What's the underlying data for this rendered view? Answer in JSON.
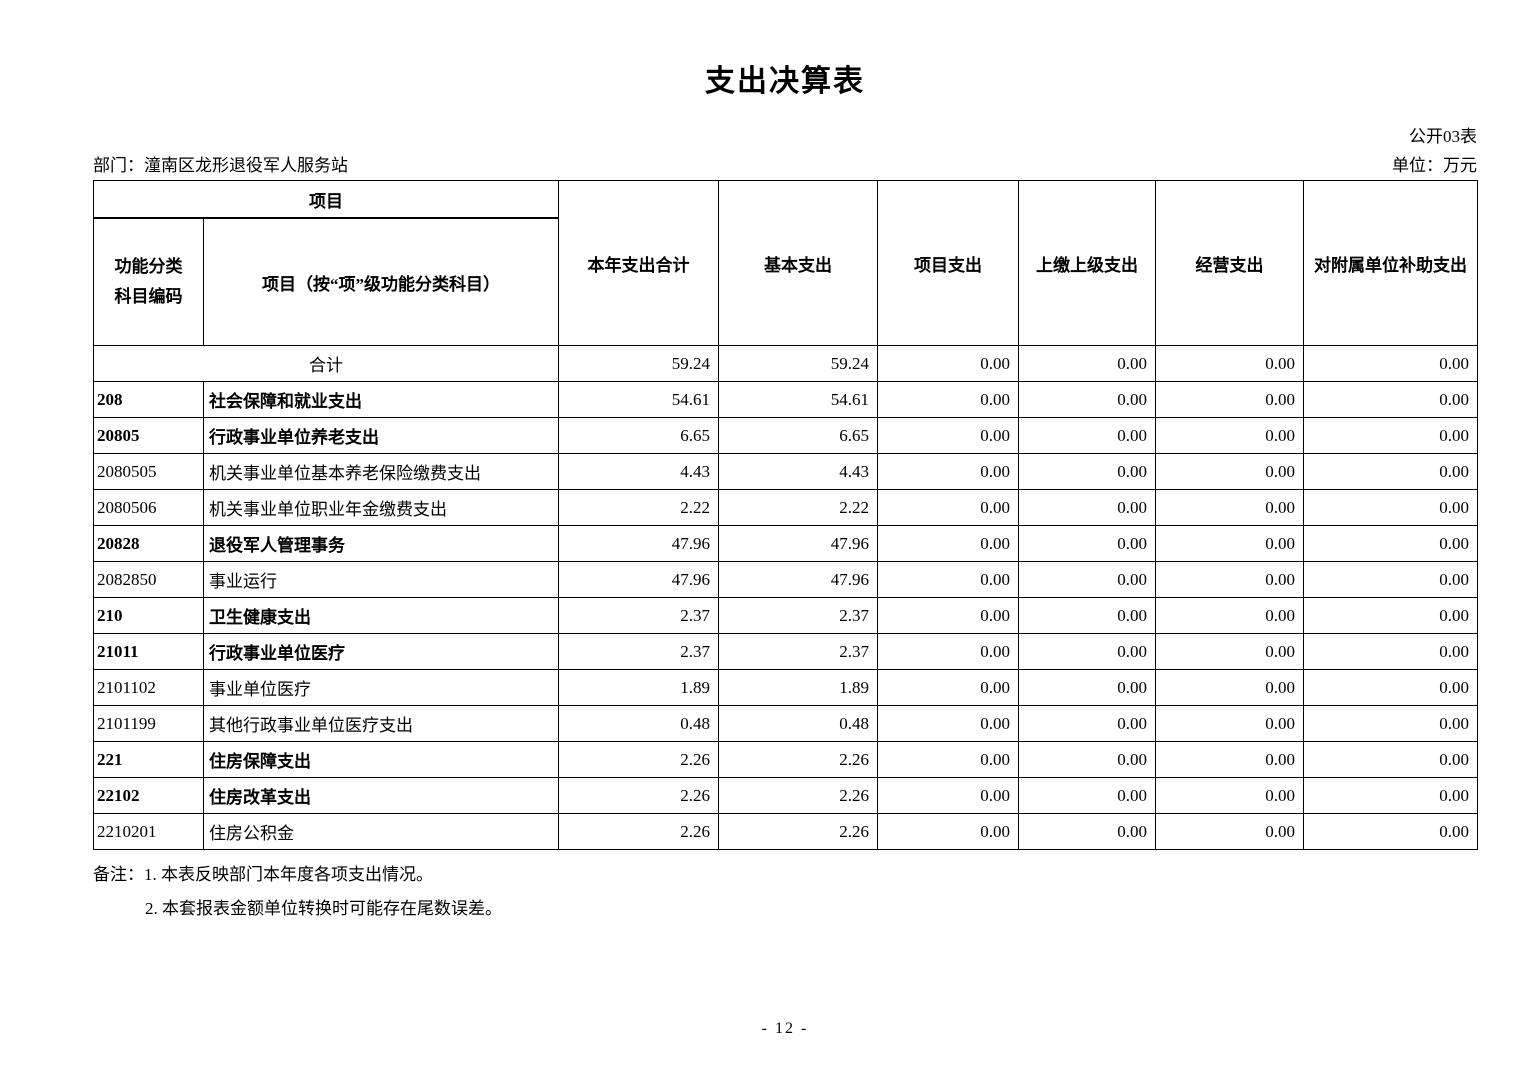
{
  "page": {
    "title": "支出决算表",
    "table_no": "公开03表",
    "department": "部门：潼南区龙形退役军人服务站",
    "unit": "单位：万元",
    "page_number": "- 12 -"
  },
  "table": {
    "header": {
      "group": "项目",
      "col_code": "功能分类科目编码",
      "col_item": "项目（按“项”级功能分类科目）",
      "cols": [
        "本年支出合计",
        "基本支出",
        "项目支出",
        "上缴上级支出",
        "经营支出",
        "对附属单位补助支出"
      ]
    },
    "rows": [
      {
        "code": "",
        "name": "合计",
        "bold": false,
        "merged": true,
        "values": [
          "59.24",
          "59.24",
          "0.00",
          "0.00",
          "0.00",
          "0.00"
        ]
      },
      {
        "code": "208",
        "name": "社会保障和就业支出",
        "bold": true,
        "merged": false,
        "values": [
          "54.61",
          "54.61",
          "0.00",
          "0.00",
          "0.00",
          "0.00"
        ]
      },
      {
        "code": "20805",
        "name": "行政事业单位养老支出",
        "bold": true,
        "merged": false,
        "values": [
          "6.65",
          "6.65",
          "0.00",
          "0.00",
          "0.00",
          "0.00"
        ]
      },
      {
        "code": "2080505",
        "name": "机关事业单位基本养老保险缴费支出",
        "bold": false,
        "merged": false,
        "values": [
          "4.43",
          "4.43",
          "0.00",
          "0.00",
          "0.00",
          "0.00"
        ]
      },
      {
        "code": "2080506",
        "name": "机关事业单位职业年金缴费支出",
        "bold": false,
        "merged": false,
        "values": [
          "2.22",
          "2.22",
          "0.00",
          "0.00",
          "0.00",
          "0.00"
        ]
      },
      {
        "code": "20828",
        "name": "退役军人管理事务",
        "bold": true,
        "merged": false,
        "values": [
          "47.96",
          "47.96",
          "0.00",
          "0.00",
          "0.00",
          "0.00"
        ]
      },
      {
        "code": "2082850",
        "name": "事业运行",
        "bold": false,
        "merged": false,
        "values": [
          "47.96",
          "47.96",
          "0.00",
          "0.00",
          "0.00",
          "0.00"
        ]
      },
      {
        "code": "210",
        "name": "卫生健康支出",
        "bold": true,
        "merged": false,
        "values": [
          "2.37",
          "2.37",
          "0.00",
          "0.00",
          "0.00",
          "0.00"
        ]
      },
      {
        "code": "21011",
        "name": "行政事业单位医疗",
        "bold": true,
        "merged": false,
        "values": [
          "2.37",
          "2.37",
          "0.00",
          "0.00",
          "0.00",
          "0.00"
        ]
      },
      {
        "code": "2101102",
        "name": "事业单位医疗",
        "bold": false,
        "merged": false,
        "values": [
          "1.89",
          "1.89",
          "0.00",
          "0.00",
          "0.00",
          "0.00"
        ]
      },
      {
        "code": "2101199",
        "name": "其他行政事业单位医疗支出",
        "bold": false,
        "merged": false,
        "values": [
          "0.48",
          "0.48",
          "0.00",
          "0.00",
          "0.00",
          "0.00"
        ]
      },
      {
        "code": "221",
        "name": "住房保障支出",
        "bold": true,
        "merged": false,
        "values": [
          "2.26",
          "2.26",
          "0.00",
          "0.00",
          "0.00",
          "0.00"
        ]
      },
      {
        "code": "22102",
        "name": "住房改革支出",
        "bold": true,
        "merged": false,
        "values": [
          "2.26",
          "2.26",
          "0.00",
          "0.00",
          "0.00",
          "0.00"
        ]
      },
      {
        "code": "2210201",
        "name": "住房公积金",
        "bold": false,
        "merged": false,
        "values": [
          "2.26",
          "2.26",
          "0.00",
          "0.00",
          "0.00",
          "0.00"
        ]
      }
    ]
  },
  "notes": [
    "备注：1. 本表反映部门本年度各项支出情况。",
    "2. 本套报表金额单位转换时可能存在尾数误差。"
  ]
}
